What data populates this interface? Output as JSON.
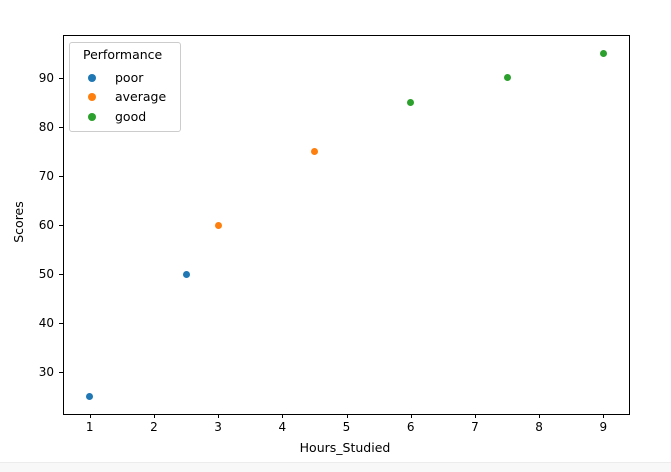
{
  "figure": {
    "background": "#ffffff",
    "spine_color": "#000000",
    "legend_border_color": "#cccccc",
    "bottom_strip_color": "#f8f8f8"
  },
  "chart_data": {
    "type": "scatter",
    "title": "",
    "xlabel": "Hours_Studied",
    "ylabel": "Scores",
    "legend_title": "Performance",
    "legend_position": "upper left",
    "grid": false,
    "xlim": [
      0.6,
      9.4
    ],
    "ylim": [
      21.5,
      98.5
    ],
    "xticks": [
      1,
      2,
      3,
      4,
      5,
      6,
      7,
      8,
      9
    ],
    "yticks": [
      30,
      40,
      50,
      60,
      70,
      80,
      90
    ],
    "series": [
      {
        "name": "poor",
        "color": "#1f77b4",
        "points": [
          [
            1,
            25
          ],
          [
            2.5,
            50
          ]
        ]
      },
      {
        "name": "average",
        "color": "#ff7f0e",
        "points": [
          [
            3,
            60
          ],
          [
            4.5,
            75
          ]
        ]
      },
      {
        "name": "good",
        "color": "#2ca02c",
        "points": [
          [
            6,
            85
          ],
          [
            7.5,
            90
          ],
          [
            9,
            95
          ]
        ]
      }
    ]
  }
}
